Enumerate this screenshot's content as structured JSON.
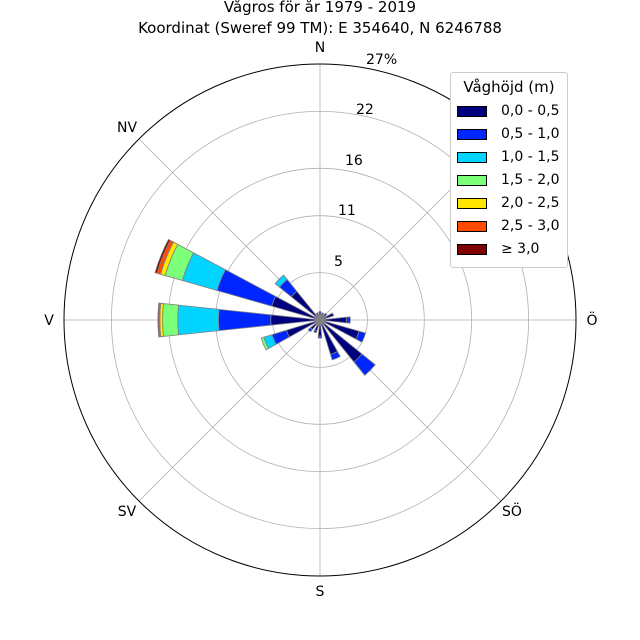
{
  "chart_data": {
    "type": "windrose",
    "title": "Vågros för år 1979 - 2019",
    "subtitle": "Koordinat (Sweref 99 TM): E 354640, N 6246788",
    "direction_labels": [
      "N",
      "NV",
      "V",
      "SV",
      "S",
      "SÖ",
      "Ö"
    ],
    "radial_ticks": [
      5,
      11,
      16,
      22
    ],
    "radial_max_label": "27%",
    "radial_max": 27,
    "grid": true,
    "legend": {
      "title": "Våghöjd (m)",
      "placement": "top-right",
      "entries": [
        {
          "label": "0,0 - 0,5",
          "color": "#00007f"
        },
        {
          "label": "0,5 - 1,0",
          "color": "#0026ff"
        },
        {
          "label": "1,0 - 1,5",
          "color": "#00d4ff"
        },
        {
          "label": "1,5 - 2,0",
          "color": "#7cff79"
        },
        {
          "label": "2,0 - 2,5",
          "color": "#ffe500"
        },
        {
          "label": "2,5 - 3,0",
          "color": "#ff4a00"
        },
        {
          "label": "≥ 3,0",
          "color": "#7f0000"
        }
      ]
    },
    "sector_width_deg": 12,
    "sectors": [
      {
        "direction_deg": 0,
        "values": [
          0.9,
          0.0,
          0.0,
          0.0,
          0.0,
          0.0,
          0.0
        ]
      },
      {
        "direction_deg": 22,
        "values": [
          0.8,
          0.0,
          0.0,
          0.0,
          0.0,
          0.0,
          0.0
        ]
      },
      {
        "direction_deg": 45,
        "values": [
          0.9,
          0.0,
          0.0,
          0.0,
          0.0,
          0.0,
          0.0
        ]
      },
      {
        "direction_deg": 67,
        "values": [
          1.5,
          0.0,
          0.0,
          0.0,
          0.0,
          0.0,
          0.0
        ]
      },
      {
        "direction_deg": 90,
        "values": [
          2.8,
          0.4,
          0.0,
          0.0,
          0.0,
          0.0,
          0.0
        ]
      },
      {
        "direction_deg": 112,
        "values": [
          4.3,
          0.7,
          0.0,
          0.0,
          0.0,
          0.0,
          0.0
        ]
      },
      {
        "direction_deg": 135,
        "values": [
          5.7,
          1.8,
          0.0,
          0.0,
          0.0,
          0.0,
          0.0
        ]
      },
      {
        "direction_deg": 157,
        "values": [
          3.8,
          0.6,
          0.0,
          0.0,
          0.0,
          0.0,
          0.0
        ]
      },
      {
        "direction_deg": 180,
        "values": [
          1.7,
          0.2,
          0.0,
          0.0,
          0.0,
          0.0,
          0.0
        ]
      },
      {
        "direction_deg": 202,
        "values": [
          1.2,
          0.2,
          0.0,
          0.0,
          0.0,
          0.0,
          0.0
        ]
      },
      {
        "direction_deg": 225,
        "values": [
          1.3,
          0.3,
          0.0,
          0.0,
          0.0,
          0.0,
          0.0
        ]
      },
      {
        "direction_deg": 247,
        "values": [
          3.7,
          1.6,
          0.9,
          0.3,
          0.0,
          0.0,
          0.0
        ]
      },
      {
        "direction_deg": 270,
        "values": [
          5.2,
          5.5,
          4.3,
          1.6,
          0.3,
          0.1,
          0.1
        ]
      },
      {
        "direction_deg": 292,
        "values": [
          5.3,
          6.0,
          3.8,
          1.9,
          0.5,
          0.4,
          0.2
        ]
      },
      {
        "direction_deg": 315,
        "values": [
          3.9,
          1.6,
          0.6,
          0.0,
          0.0,
          0.0,
          0.0
        ]
      },
      {
        "direction_deg": 337,
        "values": [
          0.8,
          0.0,
          0.0,
          0.0,
          0.0,
          0.0,
          0.0
        ]
      }
    ]
  }
}
